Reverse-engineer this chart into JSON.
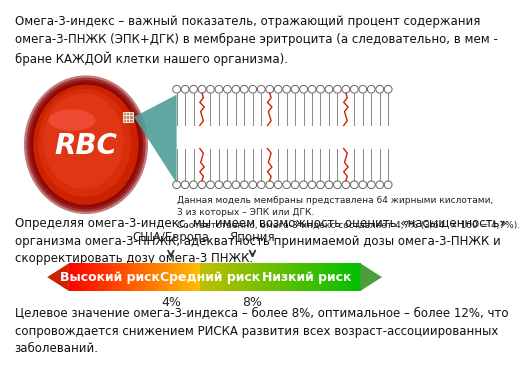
{
  "background_color": "#ffffff",
  "text1": "Омега-3-индекс – важный показатель, отражающий процент содержания\nомега-3-ПНЖК (ЭПК+ДГК) в мембране эритроцита (а следовательно, в мем -\nбране КАЖДОЙ клетки нашего организма).",
  "text2": "Данная модель мембраны представлена 64 жирными кислотами,\n3 из которых – ЭПК или ДГК.\nСоответственно, омега-3-индекс составляет 4,7% (3/64  × 100 = 4,7%).",
  "text3": "Определяя омега-3-индекс, мы имеем возможность оценить «насыщенность»\nорганизма омега-3-ПНЖК, адекватность принимаемой дозы омега-3-ПНЖК и\nскорректировать дозу омега-3 ПНЖК.",
  "text4": "Целевое значение омега-3-индекса – более 8%, оптимальное – более 12%, что\nсопровождается снижением РИСКА развития всех возраст-ассоциированных\nзаболеваний.",
  "label_usa": "США/Европа",
  "label_japan": "Япония",
  "label_high": "Высокий риск",
  "label_medium": "Средний риск",
  "label_low": "Низкий риск",
  "label_4": "4%",
  "label_8": "8%",
  "rbc_color": "#cc2200",
  "font_size_main": 8.5,
  "font_size_small": 6.5,
  "font_size_arrow": 9.0,
  "font_size_pct": 9.0,
  "font_size_country": 8.5
}
